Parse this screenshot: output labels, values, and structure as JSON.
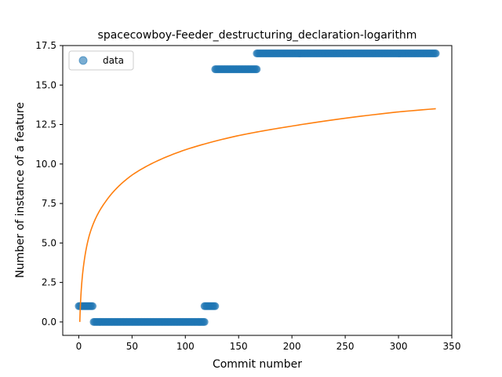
{
  "chart_data": {
    "type": "scatter",
    "title": "spacecowboy-Feeder_destructuring_declaration-logarithm",
    "xlabel": "Commit number",
    "ylabel": "Number of instance of a feature",
    "xlim": [
      -15,
      350
    ],
    "ylim": [
      -0.85,
      17.5
    ],
    "xticks": [
      0,
      50,
      100,
      150,
      200,
      250,
      300,
      350
    ],
    "yticks": [
      0.0,
      2.5,
      5.0,
      7.5,
      10.0,
      12.5,
      15.0,
      17.5
    ],
    "xtick_labels": [
      "0",
      "50",
      "100",
      "150",
      "200",
      "250",
      "300",
      "350"
    ],
    "ytick_labels": [
      "0.0",
      "2.5",
      "5.0",
      "7.5",
      "10.0",
      "12.5",
      "15.0",
      "17.5"
    ],
    "grid": false,
    "legend": {
      "position": "top-left",
      "entries": [
        "data"
      ]
    },
    "series": [
      {
        "name": "data",
        "kind": "scatter",
        "color": "#1f77b4",
        "segments": [
          {
            "x_start": 0,
            "x_end": 13,
            "y": 1
          },
          {
            "x_start": 14,
            "x_end": 118,
            "y": 0
          },
          {
            "x_start": 118,
            "x_end": 128,
            "y": 1
          },
          {
            "x_start": 128,
            "x_end": 167,
            "y": 16
          },
          {
            "x_start": 167,
            "x_end": 335,
            "y": 17
          }
        ]
      },
      {
        "kind": "line",
        "color": "#ff7f0e",
        "model": "logarithmic fit",
        "x_range": [
          1,
          335
        ],
        "samples": [
          {
            "x": 1,
            "y": 0
          },
          {
            "x": 5,
            "y": 3.8
          },
          {
            "x": 10,
            "y": 5.5
          },
          {
            "x": 25,
            "y": 7.6
          },
          {
            "x": 50,
            "y": 9.3
          },
          {
            "x": 100,
            "y": 10.9
          },
          {
            "x": 150,
            "y": 11.8
          },
          {
            "x": 200,
            "y": 12.4
          },
          {
            "x": 250,
            "y": 12.9
          },
          {
            "x": 300,
            "y": 13.3
          },
          {
            "x": 335,
            "y": 13.5
          }
        ]
      }
    ]
  }
}
